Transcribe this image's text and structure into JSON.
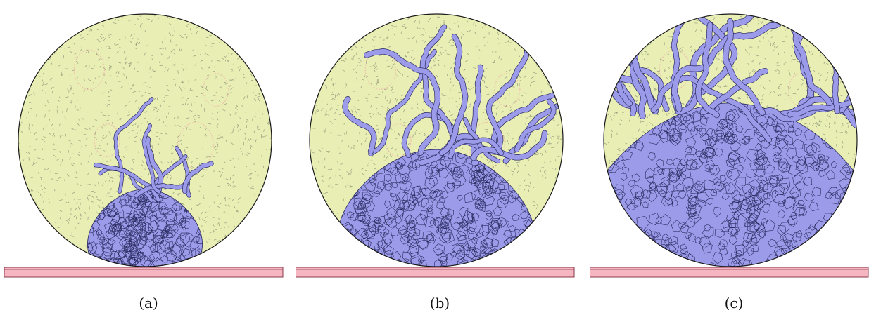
{
  "figure": {
    "panels": [
      {
        "id": "a",
        "label": "(a)",
        "damage_level": 0.25
      },
      {
        "id": "b",
        "label": "(b)",
        "damage_level": 0.55
      },
      {
        "id": "c",
        "label": "(c)",
        "damage_level": 0.9
      }
    ],
    "colors": {
      "intact_fill": "#e9eeb4",
      "cracked_fill": "#9b9bea",
      "cell_edge": "#2a2a60",
      "disk_outline": "#1a1a1a",
      "platen_fill": "#f5b6c2",
      "platen_edge": "#8a3a4a",
      "highlight": "#f0a8a8",
      "mesh_speckle": "#556055"
    }
  }
}
